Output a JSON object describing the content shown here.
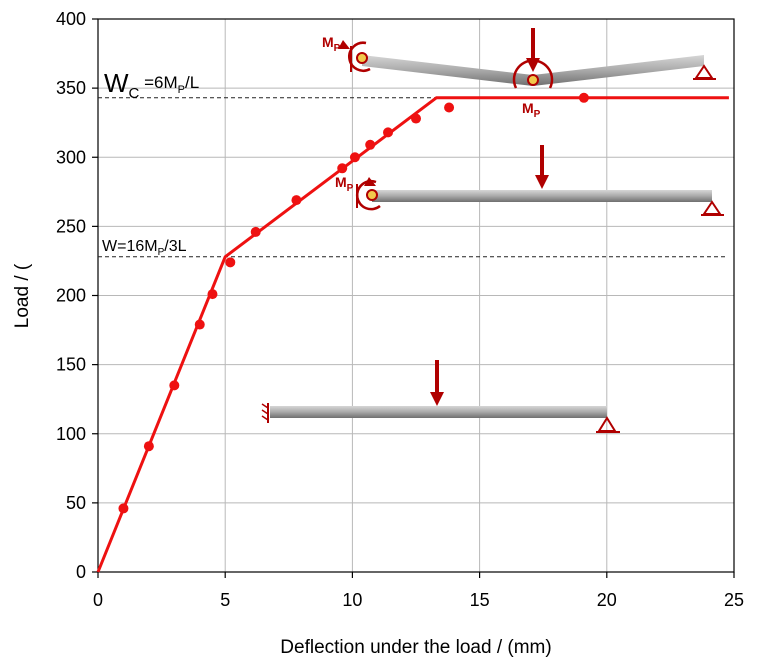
{
  "chart_data": {
    "type": "line",
    "title": "",
    "xlabel": "Deflection under the load / (mm)",
    "ylabel": "Load / (",
    "xlim": [
      0,
      25
    ],
    "ylim": [
      0,
      400
    ],
    "xticks": [
      0,
      5,
      10,
      15,
      20,
      25
    ],
    "yticks": [
      0,
      50,
      100,
      150,
      200,
      250,
      300,
      350,
      400
    ],
    "grid": true,
    "series": [
      {
        "type": "line",
        "color": "#ee1111",
        "x": [
          0,
          5.0,
          13.3,
          24.8
        ],
        "y": [
          0,
          228,
          343,
          343
        ]
      },
      {
        "type": "scatter",
        "color": "#ee1111",
        "x": [
          1.0,
          2.0,
          3.0,
          4.0,
          4.5,
          5.2,
          6.2,
          7.8,
          9.6,
          10.1,
          10.7,
          11.4,
          12.5,
          13.8,
          19.1
        ],
        "y": [
          46,
          91,
          135,
          179,
          201,
          224,
          246,
          269,
          292,
          300,
          309,
          318,
          328,
          336,
          343
        ]
      }
    ],
    "reference_lines": [
      {
        "y": 343,
        "label_main": "W",
        "label_sub": "C",
        "label_rest_1": " =6M",
        "label_rest_sub": "P",
        "label_rest_2": "/L"
      },
      {
        "y": 228,
        "label_main": "W=16M",
        "label_sub": "P",
        "label_rest": "/3L"
      }
    ],
    "annotations": {
      "mp_main": "M",
      "mp_sub": "P"
    }
  },
  "colors": {
    "series": "#ee1111",
    "beam": "#a8a8a8",
    "beam_dark": "#6e6e6e",
    "moment": "#b00000",
    "hinge_fill": "#f2c94c"
  }
}
